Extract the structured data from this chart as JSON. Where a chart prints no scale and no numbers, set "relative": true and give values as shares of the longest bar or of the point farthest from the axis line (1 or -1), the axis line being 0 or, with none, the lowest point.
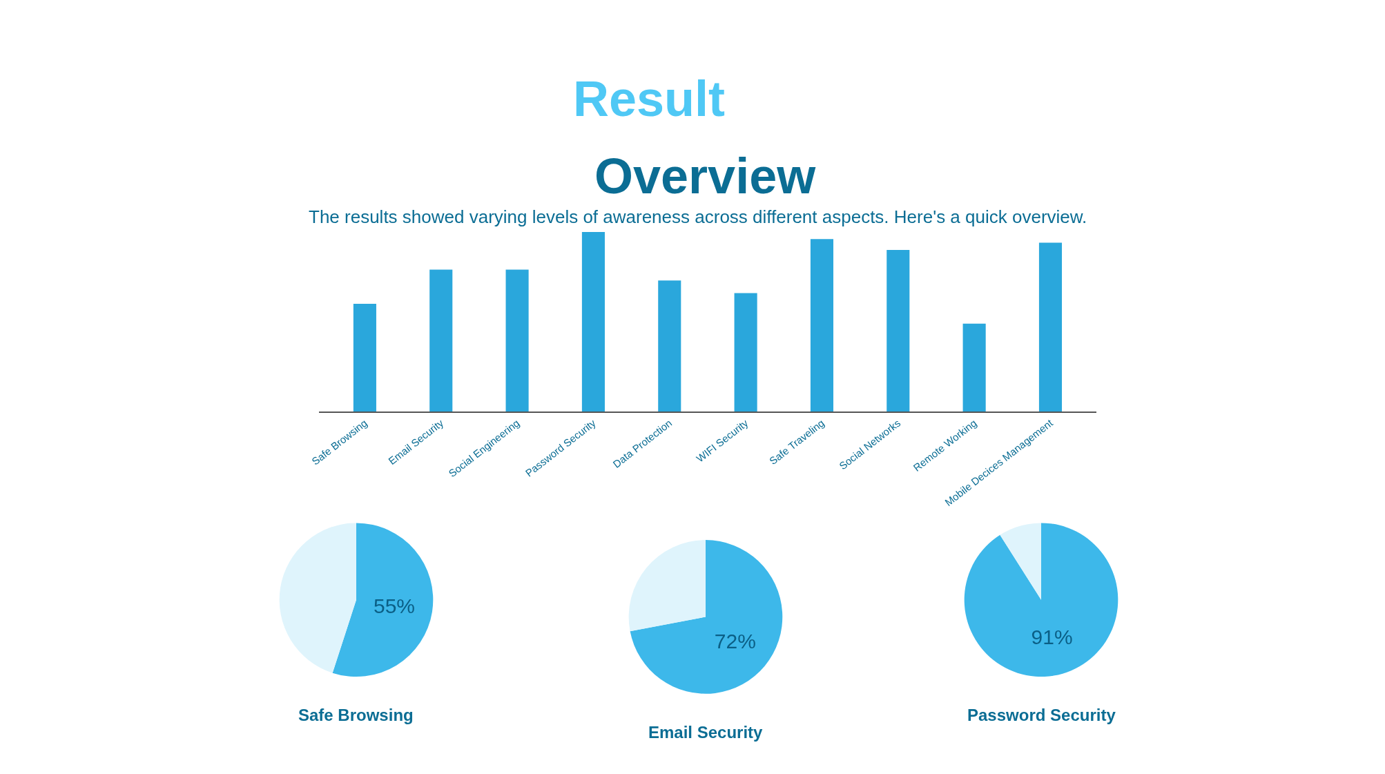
{
  "chart_data": [
    {
      "type": "bar",
      "title": "Result",
      "subtitle": "Overview",
      "annotations": [
        "The results showed varying levels of awareness across different aspects. Here's a quick overview."
      ],
      "categories": [
        "Safe Browsing",
        "Email Security",
        "Social Engineering",
        "Password Security",
        "Data Protection",
        "WIFI Security",
        "Safe Traveling",
        "Social Networks",
        "Remote Working",
        "Mobile Decices Management"
      ],
      "values": [
        0.6,
        0.79,
        0.79,
        1.0,
        0.73,
        0.66,
        0.96,
        0.9,
        0.49,
        0.94
      ],
      "color": "#2aa7dc",
      "relative": true
    },
    {
      "type": "pie",
      "title": "Safe Browsing",
      "categories": [
        null,
        null
      ],
      "values": [
        55,
        45
      ],
      "colors": [
        "#3db8ea",
        "#dff4fc"
      ],
      "value_labels": [
        "55%",
        null
      ]
    },
    {
      "type": "pie",
      "title": "Email Security",
      "categories": [
        null,
        null
      ],
      "values": [
        72,
        28
      ],
      "colors": [
        "#3db8ea",
        "#dff4fc"
      ],
      "value_labels": [
        "72%",
        null
      ]
    },
    {
      "type": "pie",
      "title": "Password Security",
      "categories": [
        null,
        null
      ],
      "values": [
        91,
        9
      ],
      "colors": [
        "#3db8ea",
        "#dff4fc"
      ],
      "value_labels": [
        "91%",
        null
      ]
    }
  ]
}
